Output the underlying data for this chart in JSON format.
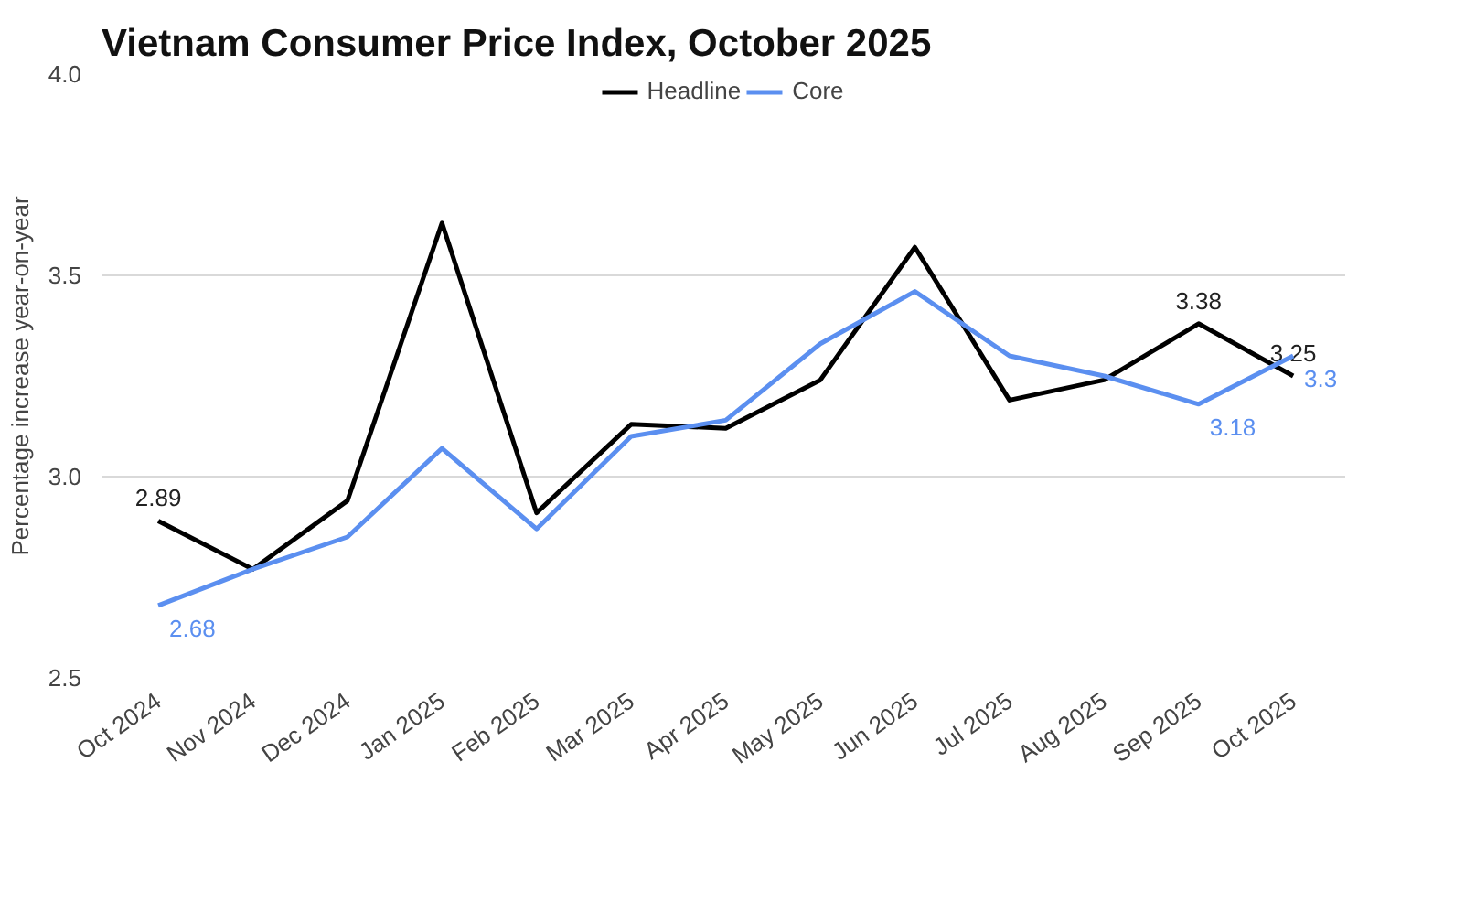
{
  "chart_data": {
    "type": "line",
    "title": "Vietnam Consumer Price Index, October 2025",
    "ylabel": "Percentage increase year-on-year",
    "categories": [
      "Oct 2024",
      "Nov 2024",
      "Dec 2024",
      "Jan 2025",
      "Feb 2025",
      "Mar 2025",
      "Apr 2025",
      "May 2025",
      "Jun 2025",
      "Jul 2025",
      "Aug 2025",
      "Sep 2025",
      "Oct 2025"
    ],
    "series": [
      {
        "name": "Headline",
        "color": "#000000",
        "values": [
          2.89,
          2.77,
          2.94,
          3.63,
          2.91,
          3.13,
          3.12,
          3.24,
          3.57,
          3.19,
          3.24,
          3.38,
          3.25
        ],
        "value_labels": [
          "2.89",
          null,
          null,
          null,
          null,
          null,
          null,
          null,
          null,
          null,
          null,
          "3.38",
          "3.25"
        ]
      },
      {
        "name": "Core",
        "color": "#5b8ff0",
        "values": [
          2.68,
          2.77,
          2.85,
          3.07,
          2.87,
          3.1,
          3.14,
          3.33,
          3.46,
          3.3,
          3.25,
          3.18,
          3.3
        ],
        "value_labels": [
          "2.68",
          null,
          null,
          null,
          null,
          null,
          null,
          null,
          null,
          null,
          null,
          "3.18",
          "3.3"
        ]
      }
    ],
    "ylim": [
      2.5,
      4.0
    ],
    "yticks": [
      {
        "value": 2.5,
        "label": "2.5"
      },
      {
        "value": 3.0,
        "label": "3.0"
      },
      {
        "value": 3.5,
        "label": "3.5"
      },
      {
        "value": 4.0,
        "label": "4.0"
      }
    ],
    "grid": "y",
    "legend": "top",
    "marker": "none",
    "line_style": "solid"
  }
}
